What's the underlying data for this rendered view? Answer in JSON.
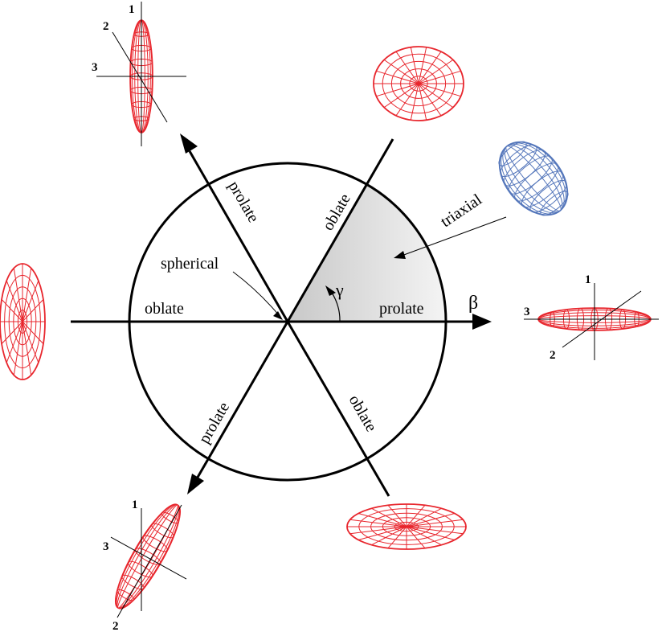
{
  "labels": {
    "beta": "β",
    "gamma": "γ",
    "spherical": "spherical",
    "triaxial": "triaxial",
    "oblate_left": "oblate",
    "prolate_right": "prolate",
    "prolate_upper": "prolate",
    "oblate_upper": "oblate",
    "prolate_lower": "prolate",
    "oblate_lower": "oblate"
  },
  "axis_numbers": {
    "top": [
      "1",
      "2",
      "3"
    ],
    "right": [
      "1",
      "2",
      "3"
    ],
    "bottom": [
      "1",
      "2",
      "3"
    ]
  },
  "colors": {
    "axial_shape": "#e8262d",
    "triaxial_shape": "#5577bb",
    "sector_dark": "#c8c8c8",
    "sector_light": "#f4f4f4",
    "line": "#000000"
  }
}
